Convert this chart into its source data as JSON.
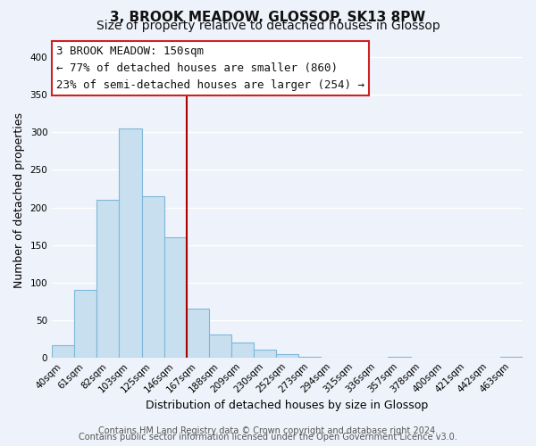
{
  "title": "3, BROOK MEADOW, GLOSSOP, SK13 8PW",
  "subtitle": "Size of property relative to detached houses in Glossop",
  "xlabel": "Distribution of detached houses by size in Glossop",
  "ylabel": "Number of detached properties",
  "bar_color": "#c8dff0",
  "bar_edge_color": "#7fb8d8",
  "bin_labels": [
    "40sqm",
    "61sqm",
    "82sqm",
    "103sqm",
    "125sqm",
    "146sqm",
    "167sqm",
    "188sqm",
    "209sqm",
    "230sqm",
    "252sqm",
    "273sqm",
    "294sqm",
    "315sqm",
    "336sqm",
    "357sqm",
    "378sqm",
    "400sqm",
    "421sqm",
    "442sqm",
    "463sqm"
  ],
  "bar_heights": [
    16,
    90,
    210,
    305,
    215,
    160,
    65,
    30,
    20,
    10,
    5,
    1,
    0,
    0,
    0,
    1,
    0,
    0,
    0,
    0,
    1
  ],
  "vline_color": "#aa0000",
  "ylim": [
    0,
    420
  ],
  "yticks": [
    0,
    50,
    100,
    150,
    200,
    250,
    300,
    350,
    400
  ],
  "annotation_line1": "3 BROOK MEADOW: 150sqm",
  "annotation_line2": "← 77% of detached houses are smaller (860)",
  "annotation_line3": "23% of semi-detached houses are larger (254) →",
  "footer_line1": "Contains HM Land Registry data © Crown copyright and database right 2024.",
  "footer_line2": "Contains public sector information licensed under the Open Government Licence v3.0.",
  "bg_color": "#eef2fa",
  "grid_color": "#ffffff",
  "title_fontsize": 11,
  "subtitle_fontsize": 10,
  "axis_label_fontsize": 9,
  "tick_fontsize": 7.5,
  "annotation_fontsize": 9,
  "footer_fontsize": 7
}
